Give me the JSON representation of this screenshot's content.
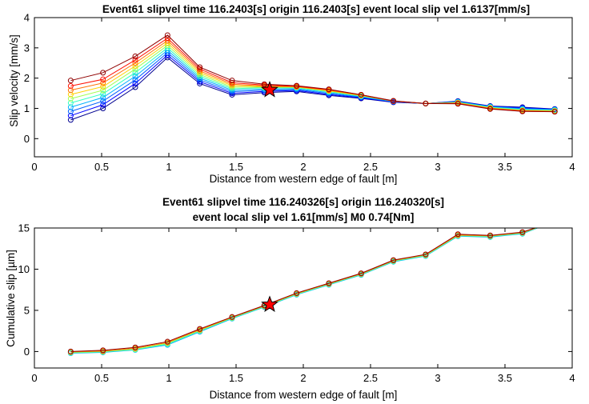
{
  "chart_data": [
    {
      "type": "line",
      "title": "Event61 slipvel time 116.2403[s] origin 116.2403[s] event local slip vel 1.6137[mm/s]",
      "xlabel": "Distance from western edge of fault [m]",
      "ylabel": "Slip velocity [mm/s]",
      "xlim": [
        0,
        4
      ],
      "ylim": [
        -0.6,
        4
      ],
      "xticks": [
        0,
        0.5,
        1,
        1.5,
        2,
        2.5,
        3,
        3.5,
        4
      ],
      "yticks": [
        0,
        1,
        2,
        3,
        4
      ],
      "grid": false,
      "legend": "none",
      "x": [
        0.27,
        0.51,
        0.75,
        0.99,
        1.23,
        1.47,
        1.71,
        1.95,
        2.19,
        2.43,
        2.67,
        2.91,
        3.15,
        3.39,
        3.63,
        3.87
      ],
      "series": [
        {
          "color": "#000090",
          "values": [
            0.62,
            1.0,
            1.7,
            2.68,
            1.82,
            1.45,
            1.52,
            1.56,
            1.43,
            1.33,
            1.2,
            1.16,
            1.24,
            1.08,
            1.04,
            0.98
          ]
        },
        {
          "color": "#0000ff",
          "values": [
            0.76,
            1.12,
            1.82,
            2.76,
            1.88,
            1.5,
            1.56,
            1.59,
            1.46,
            1.35,
            1.21,
            1.16,
            1.23,
            1.07,
            1.02,
            0.97
          ]
        },
        {
          "color": "#0060ff",
          "values": [
            0.9,
            1.24,
            1.94,
            2.84,
            1.94,
            1.55,
            1.6,
            1.62,
            1.49,
            1.37,
            1.22,
            1.16,
            1.22,
            1.06,
            1.0,
            0.96
          ]
        },
        {
          "color": "#00b0ff",
          "values": [
            1.04,
            1.36,
            2.06,
            2.92,
            2.0,
            1.6,
            1.64,
            1.65,
            1.52,
            1.39,
            1.23,
            1.16,
            1.21,
            1.05,
            0.98,
            0.95
          ]
        },
        {
          "color": "#30ffc0",
          "values": [
            1.18,
            1.48,
            2.18,
            3.0,
            2.06,
            1.65,
            1.68,
            1.68,
            1.55,
            1.41,
            1.24,
            1.16,
            1.2,
            1.04,
            0.96,
            0.94
          ]
        },
        {
          "color": "#a0ff50",
          "values": [
            1.32,
            1.6,
            2.3,
            3.08,
            2.12,
            1.7,
            1.7,
            1.7,
            1.57,
            1.42,
            1.24,
            1.16,
            1.19,
            1.02,
            0.94,
            0.92
          ]
        },
        {
          "color": "#ffd000",
          "values": [
            1.46,
            1.72,
            2.4,
            3.16,
            2.18,
            1.75,
            1.72,
            1.71,
            1.58,
            1.43,
            1.24,
            1.16,
            1.18,
            1.01,
            0.93,
            0.91
          ]
        },
        {
          "color": "#ff7000",
          "values": [
            1.6,
            1.84,
            2.5,
            3.24,
            2.24,
            1.8,
            1.74,
            1.72,
            1.6,
            1.44,
            1.24,
            1.16,
            1.17,
            1.0,
            0.92,
            0.9
          ]
        },
        {
          "color": "#ff1000",
          "values": [
            1.74,
            1.96,
            2.6,
            3.32,
            2.3,
            1.85,
            1.77,
            1.73,
            1.62,
            1.45,
            1.24,
            1.16,
            1.16,
            0.99,
            0.91,
            0.89
          ]
        },
        {
          "color": "#900000",
          "values": [
            1.92,
            2.18,
            2.72,
            3.42,
            2.36,
            1.92,
            1.8,
            1.75,
            1.63,
            1.45,
            1.25,
            1.16,
            1.15,
            0.98,
            0.9,
            0.89
          ]
        }
      ],
      "star": {
        "x": 1.75,
        "y": 1.61,
        "color": "#ff0000"
      }
    },
    {
      "type": "line",
      "title": "Event61 slipvel time 116.240326[s] origin 116.240320[s]",
      "subtitle": "event local slip vel 1.61[mm/s] M0 0.74[Nm]",
      "xlabel": "Distance from western edge of fault [m]",
      "ylabel": "Cumulative slip [µm]",
      "xlim": [
        0,
        4
      ],
      "ylim": [
        -2,
        15
      ],
      "xticks": [
        0,
        0.5,
        1,
        1.5,
        2,
        2.5,
        3,
        3.5,
        4
      ],
      "yticks": [
        0,
        5,
        10,
        15
      ],
      "grid": false,
      "legend": "none",
      "x": [
        0.27,
        0.51,
        0.75,
        0.99,
        1.23,
        1.47,
        1.71,
        1.95,
        2.19,
        2.43,
        2.67,
        2.91,
        3.15,
        3.39,
        3.63,
        3.87
      ],
      "series": [
        {
          "color": "#00b0ff",
          "values": [
            -0.2,
            -0.1,
            0.2,
            0.8,
            2.4,
            4.0,
            5.4,
            6.9,
            8.1,
            9.3,
            10.9,
            11.6,
            14.0,
            13.9,
            14.3,
            15.8
          ]
        },
        {
          "color": "#30ffc0",
          "values": [
            -0.15,
            -0.05,
            0.25,
            0.9,
            2.5,
            4.05,
            5.45,
            6.95,
            8.15,
            9.35,
            10.95,
            11.65,
            14.05,
            13.95,
            14.35,
            15.8
          ]
        },
        {
          "color": "#a0ff50",
          "values": [
            -0.1,
            0.0,
            0.3,
            1.0,
            2.55,
            4.1,
            5.5,
            7.0,
            8.2,
            9.4,
            11.0,
            11.7,
            14.1,
            14.0,
            14.4,
            15.8
          ]
        },
        {
          "color": "#ff7000",
          "values": [
            -0.05,
            0.05,
            0.4,
            1.1,
            2.65,
            4.15,
            5.55,
            7.05,
            8.25,
            9.45,
            11.05,
            11.75,
            14.15,
            14.05,
            14.45,
            15.8
          ]
        },
        {
          "color": "#900000",
          "values": [
            0.0,
            0.15,
            0.5,
            1.2,
            2.75,
            4.2,
            5.6,
            7.1,
            8.3,
            9.5,
            11.1,
            11.8,
            14.25,
            14.1,
            14.5,
            15.8
          ]
        }
      ],
      "star": {
        "x": 1.75,
        "y": 5.7,
        "color": "#ff0000"
      }
    }
  ]
}
